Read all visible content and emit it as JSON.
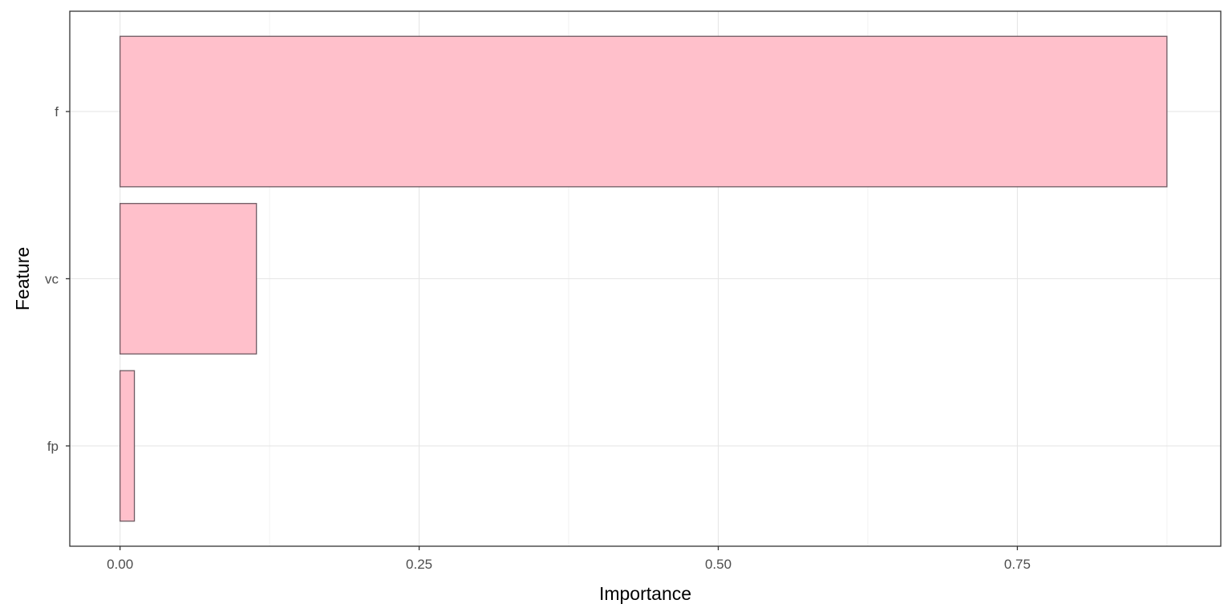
{
  "chart_data": {
    "type": "bar",
    "orientation": "horizontal",
    "categories": [
      "f",
      "vc",
      "fp"
    ],
    "values": [
      0.875,
      0.114,
      0.012
    ],
    "xlabel": "Importance",
    "ylabel": "Feature",
    "xlim": [
      -0.042,
      0.92
    ],
    "x_ticks": [
      0,
      0.25,
      0.5,
      0.75
    ],
    "x_tick_labels": [
      "0.00",
      "0.25",
      "0.50",
      "0.75"
    ],
    "grid": true,
    "colors": {
      "bar_fill": "#ffc0cb",
      "bar_stroke": "#6e5a62",
      "grid_major": "#e6e6e6",
      "grid_minor": "#f2f2f2",
      "panel_border": "#333333",
      "tick_text": "#4d4d4d"
    }
  }
}
